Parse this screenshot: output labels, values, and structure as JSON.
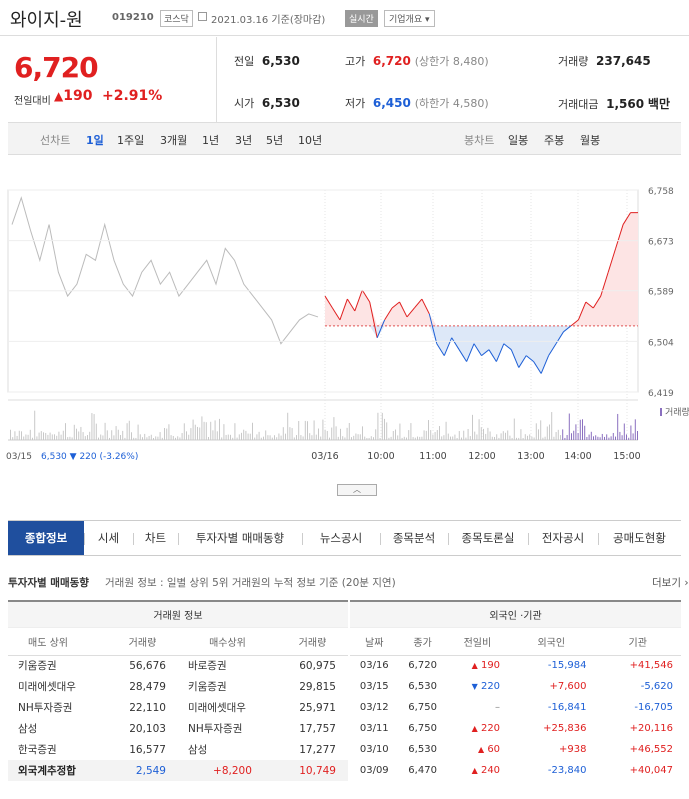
{
  "header": {
    "name": "와이지-원",
    "code": "019210",
    "market": "코스닥",
    "date": "2021.03.16 기준(장마감)",
    "realtime": "실시간",
    "company_info": "기업개요"
  },
  "price": {
    "current": "6,720",
    "change_label": "전일대비",
    "change": "190",
    "change_pct": "+2.91%"
  },
  "stats": {
    "prev_close": {
      "label": "전일",
      "value": "6,530"
    },
    "high": {
      "label": "고가",
      "value": "6,720",
      "sub": "(상한가 8,480)"
    },
    "volume": {
      "label": "거래량",
      "value": "237,645"
    },
    "open": {
      "label": "시가",
      "value": "6,530"
    },
    "low": {
      "label": "저가",
      "value": "6,450",
      "sub": "(하한가 4,580)"
    },
    "amount": {
      "label": "거래대금",
      "value": "1,560",
      "unit": "백만"
    }
  },
  "chart_tabs": {
    "line_label": "선차트",
    "line_periods": [
      "1일",
      "1주일",
      "3개월",
      "1년",
      "3년",
      "5년",
      "10년"
    ],
    "candle_label": "봉차트",
    "candle_periods": [
      "일봉",
      "주봉",
      "월봉"
    ]
  },
  "chart_data": {
    "type": "line",
    "yticks": [
      "6,758",
      "6,673",
      "6,589",
      "6,504",
      "6,419"
    ],
    "ylim": [
      6419,
      6758
    ],
    "xticks": [
      "03/16",
      "10:00",
      "11:00",
      "12:00",
      "13:00",
      "14:00",
      "15:00"
    ],
    "base": 6530,
    "prev_day_label": "03/15",
    "prev_day_close": "6,530",
    "prev_day_change": "220 (-3.26%)",
    "volume_label": "거래량",
    "prev_series": [
      6700,
      6745,
      6690,
      6640,
      6700,
      6620,
      6580,
      6600,
      6650,
      6640,
      6700,
      6640,
      6600,
      6580,
      6620,
      6640,
      6600,
      6620,
      6580,
      6600,
      6620,
      6640,
      6600,
      6660,
      6640,
      6600,
      6580,
      6560,
      6540,
      6500,
      6520,
      6540,
      6550,
      6545
    ],
    "today_series": [
      6580,
      6560,
      6540,
      6575,
      6555,
      6590,
      6570,
      6510,
      6540,
      6560,
      6570,
      6545,
      6560,
      6575,
      6550,
      6500,
      6480,
      6510,
      6490,
      6470,
      6500,
      6480,
      6490,
      6470,
      6500,
      6490,
      6460,
      6480,
      6470,
      6450,
      6480,
      6500,
      6520,
      6530,
      6540,
      6570,
      6560,
      6580,
      6620,
      6660,
      6700,
      6720,
      6720
    ]
  },
  "main_tabs": [
    "종합정보",
    "시세",
    "차트",
    "투자자별 매매동향",
    "뉴스공시",
    "종목분석",
    "종목토론실",
    "전자공시",
    "공매도현황"
  ],
  "investor": {
    "title": "투자자별 매매동향",
    "desc": "거래원 정보 : 일별 상위 5위 거래원의 누적 정보 기준 (20분 지연)",
    "more": "더보기"
  },
  "broker": {
    "title": "거래원 정보",
    "headers": [
      "매도 상위",
      "거래량",
      "매수상위",
      "거래량"
    ],
    "rows": [
      [
        "키움증권",
        "56,676",
        "바로증권",
        "60,975"
      ],
      [
        "미래에셋대우",
        "28,479",
        "키움증권",
        "29,815"
      ],
      [
        "NH투자증권",
        "22,110",
        "미래에셋대우",
        "25,971"
      ],
      [
        "삼성",
        "20,103",
        "NH투자증권",
        "17,757"
      ],
      [
        "한국증권",
        "16,577",
        "삼성",
        "17,277"
      ]
    ],
    "foreign": {
      "label": "외국계추정합",
      "sell": "2,549",
      "net": "+8,200",
      "buy": "10,749"
    }
  },
  "foreign_inst": {
    "title": "외국인 ·기관",
    "headers": [
      "날짜",
      "종가",
      "전일비",
      "외국인",
      "기관"
    ],
    "rows": [
      {
        "date": "03/16",
        "close": "6,720",
        "dir": "up",
        "chg": "190",
        "foreign": "-15,984",
        "inst": "+41,546"
      },
      {
        "date": "03/15",
        "close": "6,530",
        "dir": "down",
        "chg": "220",
        "foreign": "+7,600",
        "inst": "-5,620"
      },
      {
        "date": "03/12",
        "close": "6,750",
        "dir": "none",
        "chg": "",
        "foreign": "-16,841",
        "inst": "-16,705"
      },
      {
        "date": "03/11",
        "close": "6,750",
        "dir": "up",
        "chg": "220",
        "foreign": "+25,836",
        "inst": "+20,116"
      },
      {
        "date": "03/10",
        "close": "6,530",
        "dir": "up",
        "chg": "60",
        "foreign": "+938",
        "inst": "+46,552"
      },
      {
        "date": "03/09",
        "close": "6,470",
        "dir": "up",
        "chg": "240",
        "foreign": "-23,840",
        "inst": "+40,047"
      }
    ]
  }
}
